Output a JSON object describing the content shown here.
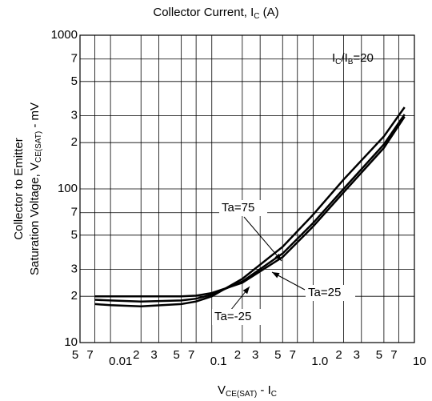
{
  "chart_data": {
    "type": "line",
    "title": [
      "Collector Current, I",
      "C",
      " (A)"
    ],
    "x_label": [
      "V",
      "CE(SAT)",
      " - I",
      "C"
    ],
    "y_label": [
      "Collector to Emitter",
      "Saturation Voltage, V",
      "CE(SAT)",
      " - mV"
    ],
    "log_x": true,
    "log_y": true,
    "grid": true,
    "xlim": [
      0.005,
      10
    ],
    "ylim": [
      10,
      1000
    ],
    "xticks": [
      {
        "value": 0.005,
        "label": "5"
      },
      {
        "value": 0.007,
        "label": "7"
      },
      0.01,
      {
        "value": 0.02,
        "label": "2"
      },
      {
        "value": 0.03,
        "label": "3"
      },
      {
        "value": 0.05,
        "label": "5"
      },
      {
        "value": 0.07,
        "label": "7"
      },
      0.1,
      {
        "value": 0.2,
        "label": "2"
      },
      {
        "value": 0.3,
        "label": "3"
      },
      {
        "value": 0.5,
        "label": "5"
      },
      {
        "value": 0.7,
        "label": "7"
      },
      {
        "value": 1,
        "label": "1.0"
      },
      {
        "value": 2,
        "label": "2"
      },
      {
        "value": 3,
        "label": "3"
      },
      {
        "value": 5,
        "label": "5"
      },
      {
        "value": 7,
        "label": "7"
      },
      10
    ],
    "yticks": [
      10,
      {
        "value": 20,
        "label": "2"
      },
      {
        "value": 30,
        "label": "3"
      },
      {
        "value": 50,
        "label": "5"
      },
      {
        "value": 70,
        "label": "7"
      },
      100,
      {
        "value": 200,
        "label": "2"
      },
      {
        "value": 300,
        "label": "3"
      },
      {
        "value": 500,
        "label": "5"
      },
      {
        "value": 700,
        "label": "7"
      },
      1000
    ],
    "x": [
      0.007,
      0.01,
      0.02,
      0.05,
      0.07,
      0.1,
      0.2,
      0.5,
      1,
      2,
      5,
      8
    ],
    "series": [
      {
        "name": "Ta=75",
        "color": "#000000",
        "values": [
          17.8,
          17.5,
          17.2,
          17.8,
          18.5,
          20,
          26,
          42,
          68,
          115,
          220,
          340
        ]
      },
      {
        "name": "Ta=25",
        "color": "#000000",
        "values": [
          19,
          18.8,
          18.5,
          18.8,
          19.3,
          20.5,
          25,
          38,
          60,
          100,
          195,
          305
        ]
      },
      {
        "name": "Ta=-25",
        "color": "#000000",
        "values": [
          20,
          20,
          20,
          20,
          20.2,
          21,
          24.5,
          36,
          57,
          95,
          185,
          295
        ]
      }
    ],
    "annotation": [
      "I",
      "C",
      "/I",
      "B",
      "=20"
    ]
  }
}
